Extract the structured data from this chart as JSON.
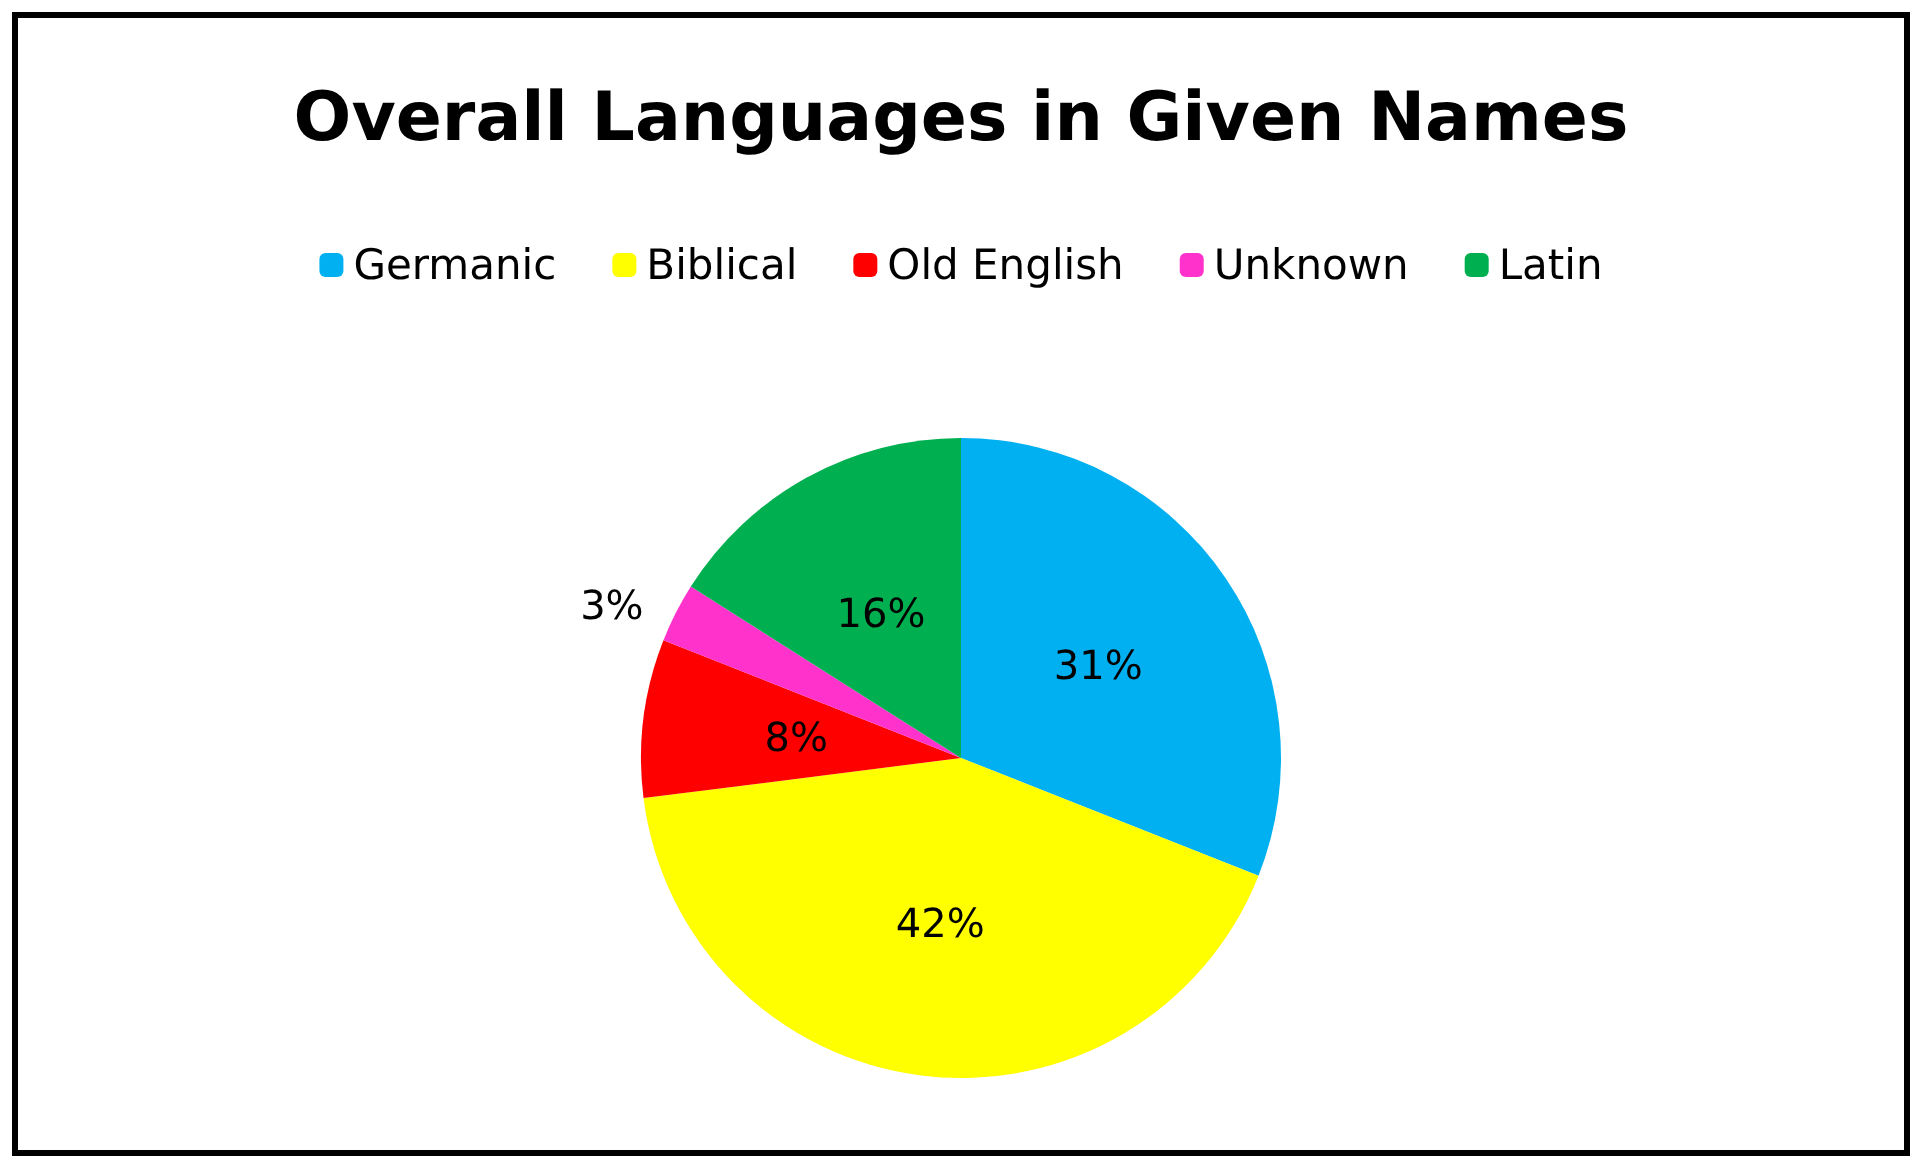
{
  "chart_data": {
    "type": "pie",
    "title": "Overall Languages in Given Names",
    "categories": [
      "Germanic",
      "Biblical",
      "Old English",
      "Unknown",
      "Latin"
    ],
    "values": [
      31,
      42,
      8,
      3,
      16
    ],
    "value_labels": [
      "31%",
      "42%",
      "8%",
      "3%",
      "16%"
    ],
    "colors": [
      "#00b0f0",
      "#ffff00",
      "#ff0000",
      "#ff33cc",
      "#00b050"
    ],
    "legend": "top"
  }
}
